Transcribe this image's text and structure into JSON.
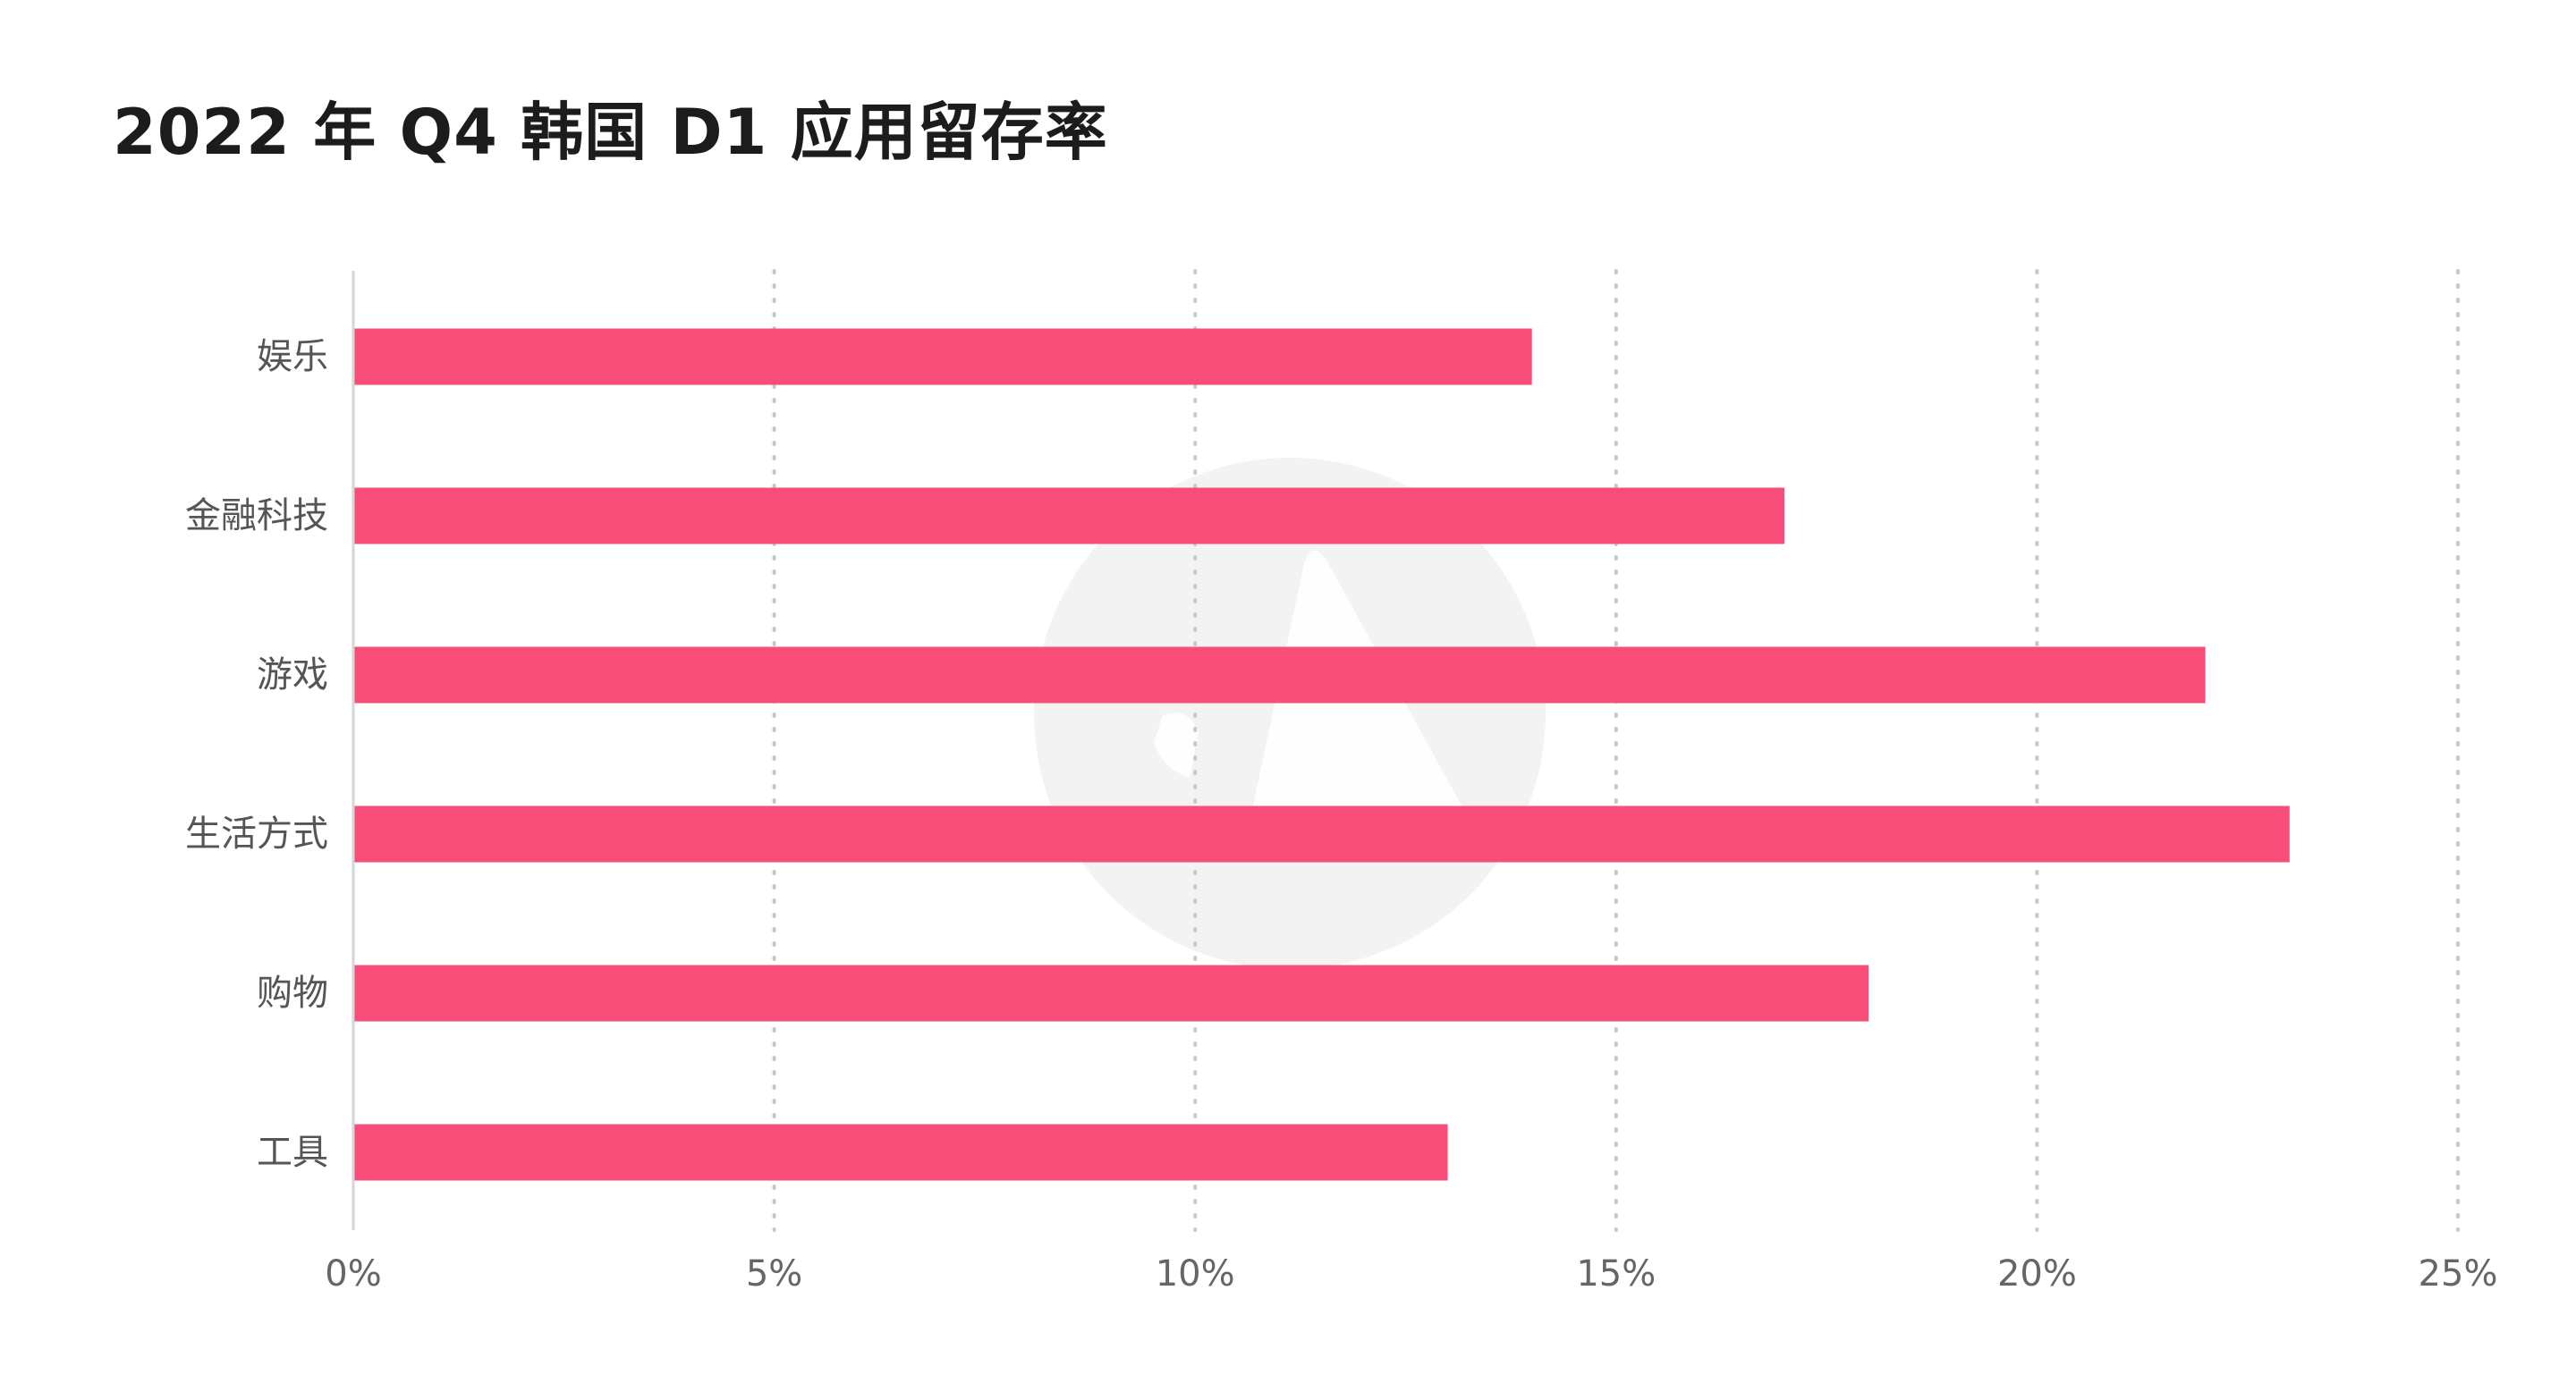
{
  "chart_data": {
    "type": "bar",
    "orientation": "horizontal",
    "title": "2022 年 Q4 韩国 D1 应用留存率",
    "categories": [
      "娱乐",
      "金融科技",
      "游戏",
      "生活方式",
      "购物",
      "工具"
    ],
    "values": [
      14,
      17,
      22,
      23,
      18,
      13
    ],
    "xlim": [
      0,
      25
    ],
    "x_ticks": [
      0,
      5,
      10,
      15,
      20,
      25
    ],
    "x_tick_labels": [
      "0%",
      "5%",
      "10%",
      "15%",
      "20%",
      "25%"
    ],
    "xlabel": "",
    "ylabel": "",
    "grid": "vertical-dotted",
    "bar_color": "#f74e79",
    "gridline_color": "#c8c8c8",
    "axis_color": "#d6d6d6",
    "watermark_color": "#f3f3f3"
  }
}
